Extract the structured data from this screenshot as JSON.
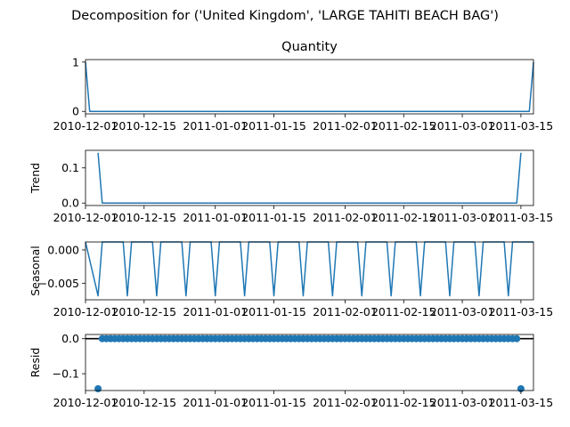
{
  "suptitle": "Decomposition for ('United Kingdom', 'LARGE TAHITI BEACH BAG')",
  "colors": {
    "series": "#1f77b4",
    "axis": "#000000",
    "background": "#ffffff"
  },
  "chart_data": {
    "type": "line",
    "layout": "4 stacked subplots sharing a daily date x-axis",
    "x_tick_labels": [
      "2010-12-01",
      "2010-12-15",
      "2011-01-01",
      "2011-01-15",
      "2011-02-01",
      "2011-02-15",
      "2011-03-01",
      "2011-03-15"
    ],
    "x_start": "2010-12-01",
    "x_end": "2011-03-18",
    "grid": false,
    "panels": [
      {
        "key": "observed",
        "title": "Quantity",
        "ylabel": "",
        "type": "line",
        "ylim": [
          -0.05,
          1.05
        ],
        "y_ticks": [
          "0",
          "1"
        ],
        "y_tick_values": [
          0,
          1
        ],
        "series": [
          {
            "points": [
              [
                "2010-12-01",
                1
              ],
              [
                "2010-12-02",
                0
              ],
              [
                "2011-03-17",
                0
              ],
              [
                "2011-03-18",
                1
              ]
            ]
          }
        ]
      },
      {
        "key": "trend",
        "title": "",
        "ylabel": "Trend",
        "type": "line",
        "ylim": [
          -0.007,
          0.15
        ],
        "y_ticks": [
          "0.0",
          "0.1"
        ],
        "y_tick_values": [
          0,
          0.1
        ],
        "series": [
          {
            "points": [
              [
                "2010-12-04",
                0.143
              ],
              [
                "2010-12-05",
                0
              ],
              [
                "2011-03-14",
                0
              ],
              [
                "2011-03-15",
                0.143
              ]
            ]
          }
        ]
      },
      {
        "key": "seasonal",
        "title": "",
        "ylabel": "Seasonal",
        "type": "line",
        "ylim": [
          -0.0075,
          0.0012
        ],
        "y_ticks": [
          "0.000",
          "−0.005"
        ],
        "y_tick_values": [
          0,
          -0.005
        ],
        "period": 7,
        "pattern": [
          -0.0069,
          0.0012,
          0.0012,
          0.0012,
          0.0012,
          0.0012,
          0.0012
        ],
        "pattern_start": "2010-12-04"
      },
      {
        "key": "resid",
        "title": "",
        "ylabel": "Resid",
        "type": "scatter",
        "ylim": [
          -0.148,
          0.012
        ],
        "y_ticks": [
          "0.0",
          "−0.1"
        ],
        "y_tick_values": [
          0,
          -0.1
        ],
        "zero_line": true,
        "points_start": "2010-12-04",
        "points_end": "2011-03-15",
        "baseline_value": 0,
        "outliers": [
          [
            "2010-12-04",
            -0.1429
          ],
          [
            "2011-03-15",
            -0.1429
          ]
        ]
      }
    ]
  }
}
